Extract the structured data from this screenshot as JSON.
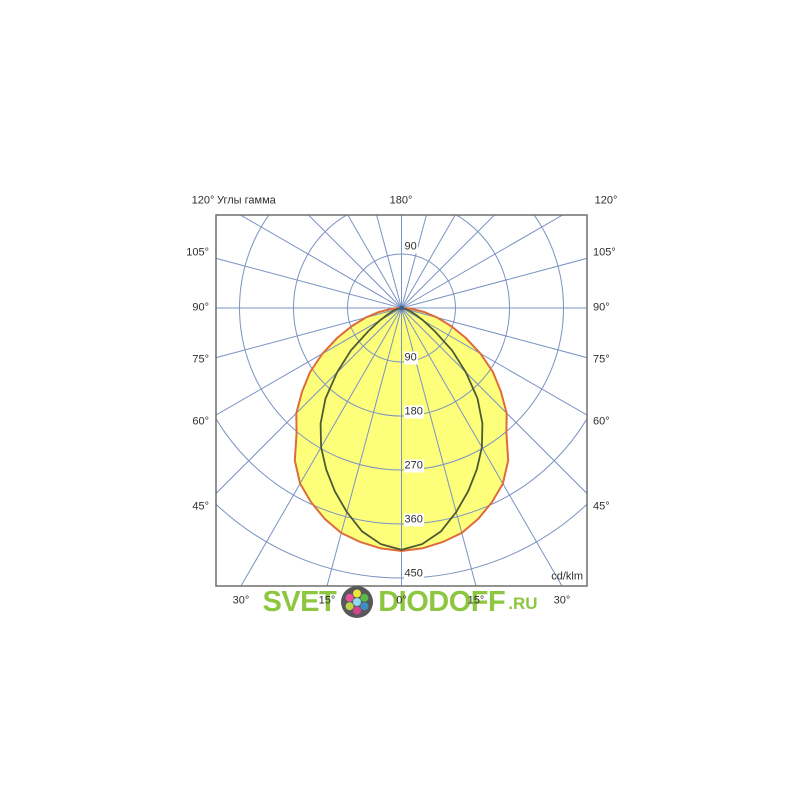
{
  "watermark": {
    "text_left": "SVET",
    "text_right": "DIODOFF",
    "text_suffix": ".RU",
    "color": "#8dc63f",
    "logo_dot_colors": {
      "center": "#8ed8f2",
      "top": "#f0e33c",
      "top_right": "#5cb84c",
      "bottom_right": "#3f8fc4",
      "bottom": "#d6428c",
      "bottom_left": "#bcd44a",
      "top_left": "#e8549c",
      "disc": "#58585b"
    }
  },
  "chart_data": {
    "type": "polar-photometric",
    "gamma_axis_label": "Углы гамма",
    "unit_label": "cd/klm",
    "top_angle_labels": {
      "left": "120°",
      "center": "180°",
      "right": "120°"
    },
    "side_angle_ticks": [
      "105°",
      "90°",
      "75°",
      "60°",
      "45°"
    ],
    "bottom_angle_ticks": [
      "30°",
      "15°",
      "0°",
      "15°",
      "30°"
    ],
    "radial_ticks": [
      "90",
      "180",
      "270",
      "360",
      "450"
    ],
    "upper_radial_tick": "90",
    "radial_step": 90,
    "max_radial_value": 450,
    "ray_step_deg": 15,
    "legend": "none",
    "grid": "on",
    "series": [
      {
        "name": "outer-curve",
        "stroke": "#dd6b3c",
        "fill": "#fdff7a",
        "points_gamma_deg_vs_cd_per_klm": [
          [
            0,
            405
          ],
          [
            5,
            402
          ],
          [
            10,
            396
          ],
          [
            15,
            388
          ],
          [
            20,
            374
          ],
          [
            25,
            357
          ],
          [
            30,
            338
          ],
          [
            35,
            310
          ],
          [
            40,
            272
          ],
          [
            45,
            248
          ],
          [
            50,
            216
          ],
          [
            55,
            186
          ],
          [
            60,
            152
          ],
          [
            65,
            118
          ],
          [
            70,
            88
          ],
          [
            75,
            62
          ],
          [
            80,
            38
          ],
          [
            85,
            17
          ],
          [
            90,
            0
          ]
        ]
      },
      {
        "name": "inner-curve",
        "stroke": "#4d5b33",
        "fill": "none",
        "points_gamma_deg_vs_cd_per_klm": [
          [
            0,
            403
          ],
          [
            5,
            395
          ],
          [
            10,
            378
          ],
          [
            15,
            352
          ],
          [
            20,
            325
          ],
          [
            25,
            297
          ],
          [
            30,
            268
          ],
          [
            35,
            235
          ],
          [
            40,
            197
          ],
          [
            45,
            152
          ],
          [
            50,
            110
          ],
          [
            55,
            68
          ],
          [
            60,
            42
          ],
          [
            65,
            26
          ],
          [
            70,
            15
          ],
          [
            75,
            8
          ],
          [
            80,
            3
          ],
          [
            85,
            1
          ],
          [
            90,
            0
          ]
        ]
      }
    ],
    "colors": {
      "grid": "#7b92c3",
      "border": "#6e6e6e",
      "text": "#2e2e2e",
      "curve_fill": "#fdff7a",
      "outer_curve": "#dd6b3c",
      "inner_curve": "#4d5b33",
      "center_dot": "#3f5e8e"
    }
  }
}
